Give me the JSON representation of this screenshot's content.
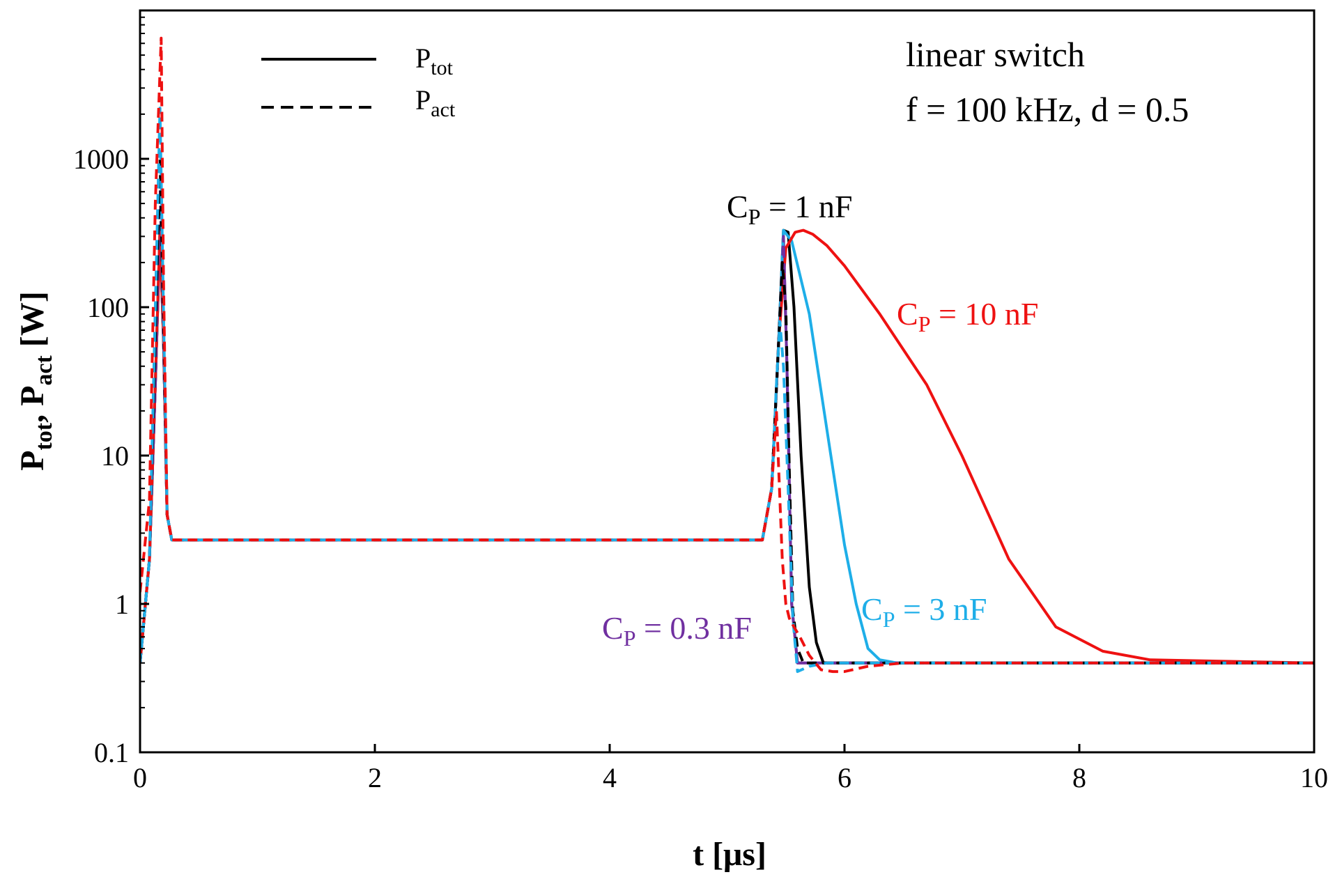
{
  "chart_data": {
    "type": "line",
    "title": "",
    "xlabel": "t [μs]",
    "ylabel": "P_tot, P_act [W]",
    "ylabel_parts": {
      "p1": "P",
      "sub1": "tot",
      "sep": ", ",
      "p2": "P",
      "sub2": "act",
      "unit": " [W]"
    },
    "xlim": [
      0,
      10
    ],
    "ylim": [
      0.1,
      10000
    ],
    "yscale": "log",
    "grid": false,
    "x_ticks": [
      {
        "value": 0,
        "label": "0"
      },
      {
        "value": 2,
        "label": "2"
      },
      {
        "value": 4,
        "label": "4"
      },
      {
        "value": 6,
        "label": "6"
      },
      {
        "value": 8,
        "label": "8"
      },
      {
        "value": 10,
        "label": "10"
      }
    ],
    "y_ticks": [
      {
        "value": 0.1,
        "label": "0.1"
      },
      {
        "value": 1,
        "label": "1"
      },
      {
        "value": 10,
        "label": "10"
      },
      {
        "value": 100,
        "label": "100"
      },
      {
        "value": 1000,
        "label": "1000"
      }
    ],
    "legend": {
      "placement": "top-left",
      "entries": [
        {
          "base": "P",
          "sub": "tot",
          "style": "solid"
        },
        {
          "base": "P",
          "sub": "act",
          "style": "dashed"
        }
      ]
    },
    "annotations": {
      "title_line1": "linear switch",
      "title_line2": "f = 100 kHz, d = 0.5",
      "cp_labels": [
        {
          "id": "cp1",
          "base": "C",
          "sub": "P",
          "rest": " = 1 nF",
          "color": "#000000"
        },
        {
          "id": "cp10",
          "base": "C",
          "sub": "P",
          "rest": " = 10 nF",
          "color": "#ee1111"
        },
        {
          "id": "cp3",
          "base": "C",
          "sub": "P",
          "rest": " = 3 nF",
          "color": "#1eaee8"
        },
        {
          "id": "cp03",
          "base": "C",
          "sub": "P",
          "rest": " = 0.3 nF",
          "color": "#7030a0"
        }
      ]
    },
    "series": [
      {
        "name": "Ptot CP=0.3 nF",
        "color": "#7030a0",
        "dash": false,
        "x": [
          0,
          0.08,
          0.13,
          0.17,
          0.2,
          0.23,
          0.27,
          0.3,
          5.3,
          5.38,
          5.44,
          5.48,
          5.51,
          5.55,
          5.6,
          10
        ],
        "y": [
          0.4,
          2,
          30,
          300,
          60,
          4,
          2.7,
          2.7,
          2.7,
          6,
          60,
          300,
          40,
          1,
          0.4,
          0.4
        ]
      },
      {
        "name": "Ptot CP=1 nF",
        "color": "#000000",
        "dash": false,
        "x": [
          0,
          0.08,
          0.13,
          0.17,
          0.2,
          0.23,
          0.27,
          0.3,
          5.3,
          5.38,
          5.44,
          5.48,
          5.52,
          5.57,
          5.63,
          5.7,
          5.76,
          5.82,
          10
        ],
        "y": [
          0.4,
          2,
          30,
          330,
          60,
          4,
          2.7,
          2.7,
          2.7,
          6,
          60,
          330,
          320,
          100,
          10,
          1.3,
          0.55,
          0.4,
          0.4
        ]
      },
      {
        "name": "Ptot CP=3 nF",
        "color": "#1eaee8",
        "dash": false,
        "x": [
          0,
          0.08,
          0.13,
          0.17,
          0.2,
          0.23,
          0.27,
          0.3,
          5.3,
          5.38,
          5.44,
          5.48,
          5.55,
          5.7,
          5.85,
          6.0,
          6.1,
          6.2,
          6.3,
          6.45,
          10
        ],
        "y": [
          0.4,
          2,
          30,
          330,
          60,
          4,
          2.7,
          2.7,
          2.7,
          6,
          60,
          330,
          280,
          90,
          15,
          2.5,
          1.0,
          0.5,
          0.42,
          0.4,
          0.4
        ]
      },
      {
        "name": "Ptot CP=10 nF",
        "color": "#ee1111",
        "dash": false,
        "x": [
          0,
          0.08,
          0.13,
          0.17,
          0.2,
          0.23,
          0.27,
          0.3,
          5.3,
          5.38,
          5.44,
          5.5,
          5.58,
          5.65,
          5.73,
          5.85,
          6.0,
          6.3,
          6.7,
          7.0,
          7.4,
          7.8,
          8.2,
          8.6,
          10
        ],
        "y": [
          0.4,
          2,
          30,
          330,
          60,
          4,
          2.7,
          2.7,
          2.7,
          6,
          60,
          250,
          320,
          330,
          310,
          260,
          190,
          90,
          30,
          10,
          2,
          0.7,
          0.48,
          0.42,
          0.4
        ]
      },
      {
        "name": "Pact CP=0.3 nF",
        "color": "#7030a0",
        "dash": true,
        "x": [
          0,
          0.08,
          0.13,
          0.17,
          0.2,
          0.23,
          0.27,
          0.3,
          5.3,
          5.38,
          5.44,
          5.48,
          5.51,
          5.55,
          5.6,
          10
        ],
        "y": [
          0.4,
          2,
          30,
          700,
          60,
          4,
          2.7,
          2.7,
          2.7,
          6,
          60,
          300,
          40,
          1,
          0.4,
          0.4
        ]
      },
      {
        "name": "Pact CP=1 nF",
        "color": "#000000",
        "dash": true,
        "x": [
          0,
          0.08,
          0.13,
          0.17,
          0.2,
          0.23,
          0.27,
          0.3,
          5.3,
          5.38,
          5.44,
          5.47,
          5.5,
          5.53,
          5.56,
          5.6,
          5.65,
          5.75,
          10
        ],
        "y": [
          0.4,
          2,
          60,
          1000,
          80,
          4,
          2.7,
          2.7,
          2.7,
          6,
          60,
          200,
          100,
          8,
          0.9,
          0.5,
          0.4,
          0.4,
          0.4
        ]
      },
      {
        "name": "Pact CP=3 nF",
        "color": "#1eaee8",
        "dash": true,
        "x": [
          0,
          0.08,
          0.13,
          0.17,
          0.2,
          0.23,
          0.27,
          0.3,
          5.3,
          5.38,
          5.42,
          5.45,
          5.48,
          5.52,
          5.56,
          5.6,
          5.7,
          5.85,
          6.1,
          10
        ],
        "y": [
          0.4,
          2,
          100,
          2200,
          90,
          4,
          2.7,
          2.7,
          2.7,
          6,
          30,
          80,
          40,
          6,
          0.8,
          0.35,
          0.38,
          0.4,
          0.4,
          0.4
        ]
      },
      {
        "name": "Pact CP=10 nF",
        "color": "#ee1111",
        "dash": true,
        "x": [
          0,
          0.08,
          0.13,
          0.18,
          0.2,
          0.23,
          0.27,
          0.3,
          5.3,
          5.38,
          5.42,
          5.44,
          5.47,
          5.5,
          5.53,
          5.57,
          5.62,
          5.7,
          5.8,
          5.9,
          6.0,
          6.2,
          6.5,
          7.0,
          10
        ],
        "y": [
          1.2,
          5,
          500,
          6500,
          150,
          4,
          2.7,
          2.7,
          2.7,
          6,
          20,
          8,
          2,
          1.0,
          0.8,
          0.7,
          0.6,
          0.45,
          0.36,
          0.35,
          0.35,
          0.38,
          0.4,
          0.4,
          0.4
        ]
      }
    ]
  }
}
